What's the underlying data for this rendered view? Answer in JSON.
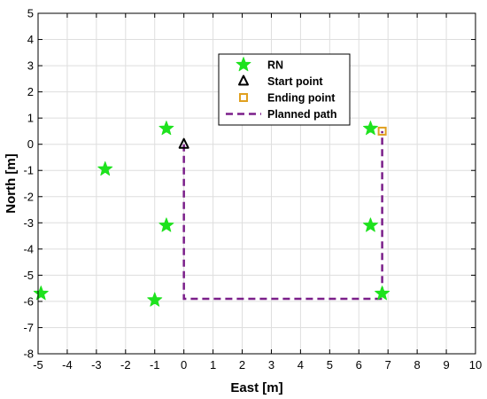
{
  "chart_data": {
    "type": "scatter",
    "xlabel": "East [m]",
    "ylabel": "North [m]",
    "xlim": [
      -5,
      10
    ],
    "ylim": [
      -8,
      5
    ],
    "x_ticks": [
      -5,
      -4,
      -3,
      -2,
      -1,
      0,
      1,
      2,
      3,
      4,
      5,
      6,
      7,
      8,
      9,
      10
    ],
    "y_ticks": [
      -8,
      -7,
      -6,
      -5,
      -4,
      -3,
      -2,
      -1,
      0,
      1,
      2,
      3,
      4,
      5
    ],
    "grid": true,
    "legend_position": "top-center",
    "series": [
      {
        "name": "RN",
        "marker": "star",
        "color": "#1ee21e",
        "points": [
          [
            -4.9,
            -5.7
          ],
          [
            -2.7,
            -0.95
          ],
          [
            -1.0,
            -5.95
          ],
          [
            -0.6,
            0.6
          ],
          [
            -0.6,
            -3.1
          ],
          [
            6.4,
            0.6
          ],
          [
            6.4,
            -3.1
          ],
          [
            6.8,
            -5.7
          ]
        ]
      },
      {
        "name": "Start point",
        "marker": "triangle",
        "color": "#000000",
        "points": [
          [
            0,
            0
          ]
        ]
      },
      {
        "name": "Ending point",
        "marker": "square",
        "color": "#e0a020",
        "points": [
          [
            6.8,
            0.5
          ]
        ]
      },
      {
        "name": "Planned path",
        "marker": "dashed-line",
        "color": "#7b1f8a",
        "points": [
          [
            0,
            0
          ],
          [
            0,
            -5.9
          ],
          [
            6.8,
            -5.9
          ],
          [
            6.8,
            0.5
          ]
        ]
      }
    ]
  }
}
